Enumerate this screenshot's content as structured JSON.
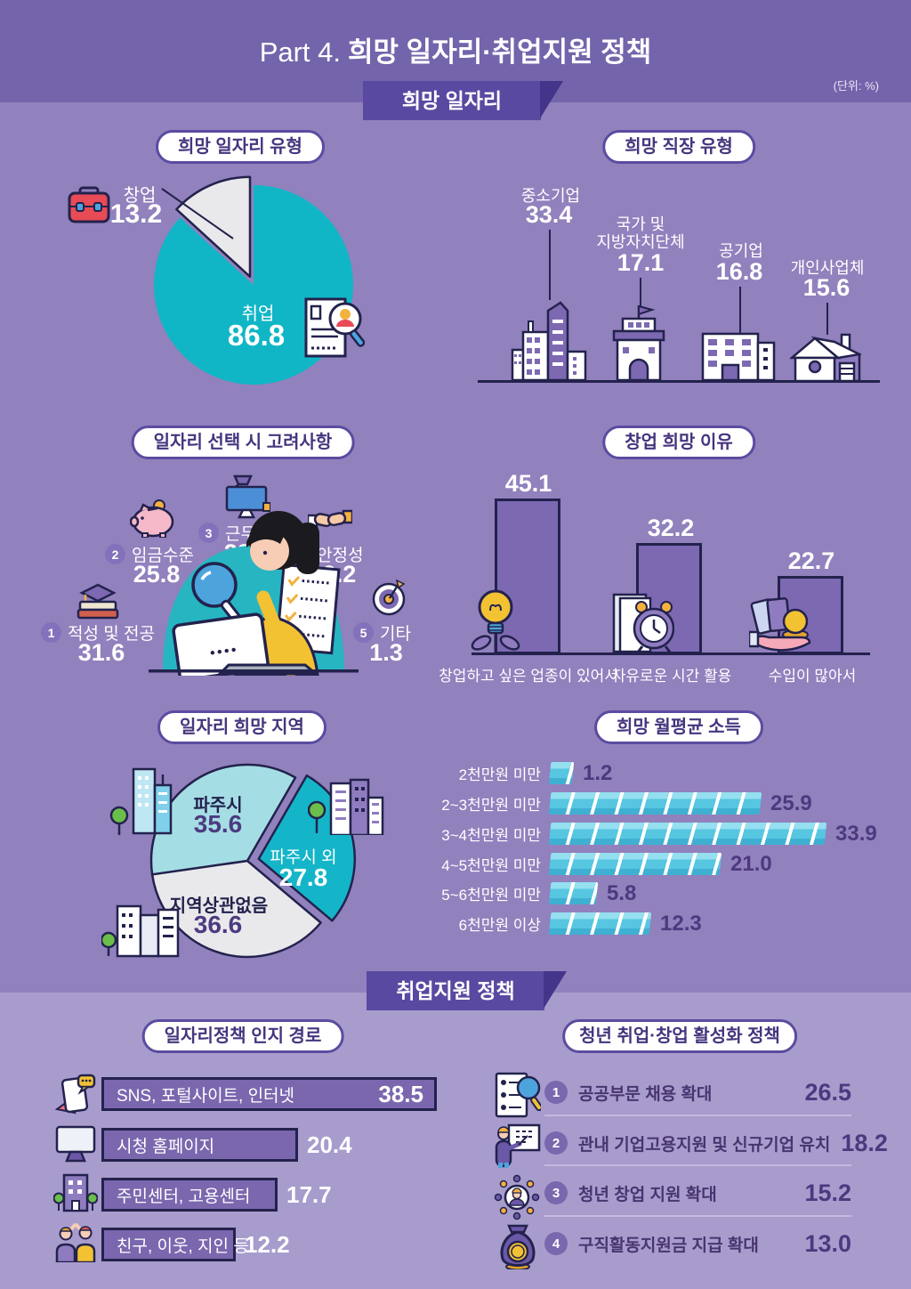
{
  "header": {
    "part": "Part 4.",
    "title": "희망 일자리·취업지원 정책",
    "unit": "(단위: %)",
    "ribbon_jobs": "희망 일자리",
    "ribbon_policy": "취업지원 정책"
  },
  "palette": {
    "header_band": "#7464ab",
    "main_bg": "#9181bd",
    "lower_bg": "#a89ccd",
    "ribbon_purple": "#5a49a0",
    "pill_border": "#5b4ba0",
    "pill_text": "#46357e",
    "teal": "#10b6c6",
    "teal_light": "#a5dde4",
    "slice_gray": "#e9e9ec",
    "bar_purple": "#7c69b2",
    "outline_navy": "#23224d",
    "money_cyan": "#57c6e1",
    "value_purple": "#4c3a80",
    "accent_yellow": "#f2c233",
    "accent_red": "#e84b55"
  },
  "chart_data": [
    {
      "id": "hope-job-type",
      "type": "pie",
      "title": "희망 일자리 유형",
      "unit": "%",
      "slices": [
        {
          "label": "취업",
          "value": 86.8,
          "display": "86.8",
          "color": "#10b6c6"
        },
        {
          "label": "창업",
          "value": 13.2,
          "display": "13.2",
          "color": "#e9e9ec"
        }
      ]
    },
    {
      "id": "hope-workplace-type",
      "type": "pictorial-labels",
      "title": "희망 직장 유형",
      "unit": "%",
      "items": [
        {
          "label": "중소기업",
          "value": 33.4,
          "display": "33.4",
          "icon": "office-tower"
        },
        {
          "label": "국가 및 지방자치단체",
          "label_lines": [
            "국가 및",
            "지방자치단체"
          ],
          "value": 17.1,
          "display": "17.1",
          "icon": "government-building"
        },
        {
          "label": "공기업",
          "value": 16.8,
          "display": "16.8",
          "icon": "office-block"
        },
        {
          "label": "개인사업체",
          "value": 15.6,
          "display": "15.6",
          "icon": "house"
        }
      ]
    },
    {
      "id": "job-choice-considerations",
      "type": "ranked-icons",
      "title": "일자리 선택 시 고려사항",
      "unit": "%",
      "items": [
        {
          "rank": 1,
          "label": "적성 및 전공",
          "value": 31.6,
          "display": "31.6",
          "icon": "books-gradcap"
        },
        {
          "rank": 2,
          "label": "임금수준",
          "value": 25.8,
          "display": "25.8",
          "icon": "piggy-bank"
        },
        {
          "rank": 3,
          "label": "근무여건",
          "value": 22.2,
          "display": "22.2",
          "icon": "desk-monitor"
        },
        {
          "rank": 4,
          "label": "안정성",
          "value": 19.2,
          "display": "19.2",
          "icon": "handshake"
        },
        {
          "rank": 5,
          "label": "기타",
          "value": 1.3,
          "display": "1.3",
          "icon": "dart-target"
        }
      ]
    },
    {
      "id": "startup-reasons",
      "type": "bar",
      "title": "창업 희망 이유",
      "unit": "%",
      "categories": [
        "창업하고 싶은 업종이 있어서",
        "자유로운 시간 활용",
        "수입이 많아서"
      ],
      "values": [
        45.1,
        32.2,
        22.7
      ],
      "value_labels": [
        "45.1",
        "32.2",
        "22.7"
      ],
      "icons": [
        "lightbulb-sprout",
        "alarm-clock-papers",
        "hand-coins"
      ]
    },
    {
      "id": "hope-region",
      "type": "pie",
      "title": "일자리 희망 지역",
      "unit": "%",
      "slices": [
        {
          "label": "파주시",
          "value": 35.6,
          "display": "35.6",
          "color": "#a5dde4"
        },
        {
          "label": "파주시 외",
          "value": 27.8,
          "display": "27.8",
          "color": "#14b5c8"
        },
        {
          "label": "지역상관없음",
          "value": 36.6,
          "display": "36.6",
          "color": "#e9e9ec"
        }
      ]
    },
    {
      "id": "hope-monthly-income",
      "type": "bar-horizontal",
      "title": "희망 월평균 소득",
      "unit": "%",
      "categories": [
        "2천만원 미만",
        "2~3천만원 미만",
        "3~4천만원 미만",
        "4~5천만원 미만",
        "5~6천만원 미만",
        "6천만원 이상"
      ],
      "values": [
        1.2,
        25.9,
        33.9,
        21.0,
        5.8,
        12.3
      ],
      "value_labels": [
        "1.2",
        "25.9",
        "33.9",
        "21.0",
        "5.8",
        "12.3"
      ]
    },
    {
      "id": "policy-awareness-channel",
      "type": "bar-horizontal",
      "title": "일자리정책 인지 경로",
      "unit": "%",
      "categories": [
        "SNS, 포털사이트, 인터넷",
        "시청 홈페이지",
        "주민센터, 고용센터",
        "친구, 이웃, 지인 등"
      ],
      "values": [
        38.5,
        20.4,
        17.7,
        12.2
      ],
      "value_labels": [
        "38.5",
        "20.4",
        "17.7",
        "12.2"
      ],
      "icons": [
        "smartphone-chat",
        "desktop-monitor",
        "community-center",
        "friends-highfive"
      ]
    },
    {
      "id": "youth-activation-policies",
      "type": "ranked-list",
      "title": "청년 취업·창업 활성화 정책",
      "unit": "%",
      "items": [
        {
          "rank": 1,
          "label": "공공부문 채용 확대",
          "value": 26.5,
          "display": "26.5",
          "icon": "resume-magnifier"
        },
        {
          "rank": 2,
          "label": "관내 기업고용지원 및 신규기업 유치",
          "value": 18.2,
          "display": "18.2",
          "icon": "presenter-whiteboard"
        },
        {
          "rank": 3,
          "label": "청년 창업 지원 확대",
          "value": 15.2,
          "display": "15.2",
          "icon": "person-network"
        },
        {
          "rank": 4,
          "label": "구직활동지원금 지급 확대",
          "value": 13.0,
          "display": "13.0",
          "icon": "money-pouch"
        }
      ]
    }
  ]
}
